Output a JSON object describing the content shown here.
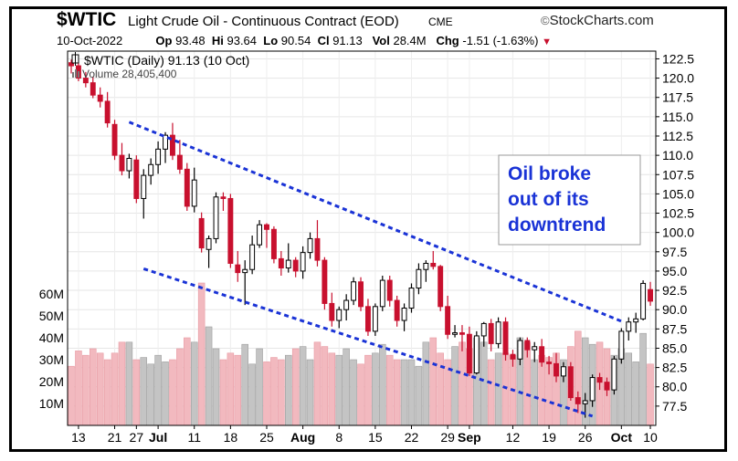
{
  "header": {
    "symbol": "$WTIC",
    "description": "Light Crude Oil - Continuous Contract (EOD)",
    "exchange": "CME",
    "brand": "StockCharts.com",
    "date": "10-Oct-2022",
    "open_label": "Op",
    "open": "93.48",
    "high_label": "Hi",
    "high": "93.64",
    "low_label": "Lo",
    "low": "90.54",
    "close_label": "Cl",
    "close": "91.13",
    "vol_label": "Vol",
    "vol": "28.4M",
    "chg_label": "Chg",
    "chg": "-1.51 (-1.63%)",
    "down_color": "#c8102e"
  },
  "legend": {
    "price_label": "$WTIC (Daily) 91.13 (10 Oct)",
    "volume_label": "Volume 28,405,400"
  },
  "annotation": {
    "lines": [
      "Oil broke",
      "out of its",
      "downtrend"
    ],
    "text_color": "#1a33d6",
    "channel_color": "#1a33d6"
  },
  "chart_data": {
    "type": "candlestick",
    "y_ticks": [
      "122.5",
      "120.0",
      "117.5",
      "115.0",
      "112.5",
      "110.0",
      "107.5",
      "105.0",
      "102.5",
      "100.0",
      "97.5",
      "95.0",
      "92.5",
      "90.0",
      "87.5",
      "85.0",
      "82.5",
      "80.0",
      "77.5"
    ],
    "volume_ticks": [
      "60M",
      "50M",
      "40M",
      "30M",
      "20M",
      "10M"
    ],
    "x_ticks": [
      {
        "label": "13",
        "i": 1
      },
      {
        "label": "21",
        "i": 6
      },
      {
        "label": "27",
        "i": 9
      },
      {
        "label": "Jul",
        "i": 12,
        "bold": true
      },
      {
        "label": "11",
        "i": 17
      },
      {
        "label": "18",
        "i": 22
      },
      {
        "label": "25",
        "i": 27
      },
      {
        "label": "Aug",
        "i": 32,
        "bold": true
      },
      {
        "label": "8",
        "i": 37
      },
      {
        "label": "15",
        "i": 42
      },
      {
        "label": "22",
        "i": 47
      },
      {
        "label": "29",
        "i": 52
      },
      {
        "label": "Sep",
        "i": 55,
        "bold": true
      },
      {
        "label": "12",
        "i": 61
      },
      {
        "label": "19",
        "i": 66
      },
      {
        "label": "26",
        "i": 71
      },
      {
        "label": "Oct",
        "i": 76,
        "bold": true
      },
      {
        "label": "10",
        "i": 80
      }
    ],
    "ylim": [
      75,
      123.5
    ],
    "volume_max": 65,
    "candles": [
      [
        122,
        122.4,
        120.6,
        121.6,
        27
      ],
      [
        121.6,
        122,
        119.6,
        120,
        34
      ],
      [
        120,
        120.8,
        118.8,
        119.4,
        32
      ],
      [
        119.4,
        120.2,
        117.4,
        117.8,
        35
      ],
      [
        117.8,
        118.8,
        116.2,
        117,
        33
      ],
      [
        117,
        118.2,
        113.6,
        114.2,
        30
      ],
      [
        114,
        114.6,
        109.4,
        110,
        33
      ],
      [
        110,
        111.6,
        107.4,
        108,
        38
      ],
      [
        108,
        110.2,
        107,
        109.6,
        38
      ],
      [
        109.4,
        110,
        103.8,
        104.4,
        30
      ],
      [
        104.4,
        108.2,
        101.8,
        107.4,
        31
      ],
      [
        107.4,
        109.6,
        106.2,
        108.8,
        28
      ],
      [
        108.8,
        111.8,
        107.6,
        110.8,
        32
      ],
      [
        110.8,
        113,
        109,
        112.6,
        29
      ],
      [
        112.6,
        114.2,
        109.4,
        110,
        30
      ],
      [
        110,
        112,
        107.6,
        108.2,
        35
      ],
      [
        108.2,
        109,
        102.8,
        103.4,
        40
      ],
      [
        103.4,
        108.4,
        102.6,
        106.8,
        38
      ],
      [
        101.8,
        102.6,
        97.4,
        98,
        65
      ],
      [
        97.8,
        99.6,
        95.4,
        99.2,
        45
      ],
      [
        99.2,
        105.2,
        98.6,
        104.6,
        35
      ],
      [
        104.6,
        105.2,
        102.8,
        104.4,
        30
      ],
      [
        104.4,
        105,
        95.4,
        96,
        33
      ],
      [
        95.8,
        97.6,
        93.6,
        94.8,
        32
      ],
      [
        94.8,
        96.4,
        90.6,
        95.2,
        37
      ],
      [
        95.2,
        99.6,
        94.6,
        98.4,
        28
      ],
      [
        98.4,
        101.6,
        98,
        101,
        35
      ],
      [
        101,
        101.2,
        98,
        100.4,
        29
      ],
      [
        100.4,
        100.8,
        96,
        96.6,
        31
      ],
      [
        96.6,
        97.6,
        94.4,
        95.4,
        30
      ],
      [
        95.4,
        98.6,
        94.8,
        96.4,
        32
      ],
      [
        96.4,
        96.8,
        94.2,
        95,
        35
      ],
      [
        95,
        98.2,
        94,
        97.4,
        36
      ],
      [
        97.4,
        100,
        96.6,
        99.2,
        30
      ],
      [
        99.2,
        101.6,
        95.6,
        96.4,
        38
      ],
      [
        96.4,
        96.8,
        90,
        90.8,
        36
      ],
      [
        90.8,
        92.2,
        87.8,
        88.6,
        33
      ],
      [
        88.6,
        90.4,
        87.6,
        90,
        32
      ],
      [
        90,
        92,
        88.6,
        91.2,
        35
      ],
      [
        91.2,
        94.2,
        90.6,
        93.6,
        30
      ],
      [
        93.6,
        94.2,
        89.8,
        90.4,
        28
      ],
      [
        90.4,
        91.4,
        86.6,
        87.2,
        32
      ],
      [
        87.2,
        90.8,
        86.6,
        90.4,
        33
      ],
      [
        90.4,
        94.4,
        89.8,
        93.8,
        37
      ],
      [
        93.8,
        94.4,
        90.4,
        91.2,
        32
      ],
      [
        91.2,
        91.8,
        87.8,
        88.6,
        30
      ],
      [
        88.6,
        90.8,
        87.2,
        90.2,
        30
      ],
      [
        90.2,
        93.4,
        89.6,
        92.8,
        30
      ],
      [
        92.8,
        96,
        92,
        95.2,
        27
      ],
      [
        95.2,
        96.4,
        93.6,
        96,
        38
      ],
      [
        96,
        97.6,
        95.2,
        95.6,
        40
      ],
      [
        95.6,
        95.8,
        89.8,
        90.4,
        33
      ],
      [
        90.4,
        91.8,
        86.2,
        86.8,
        30
      ],
      [
        86.8,
        88,
        86.4,
        87,
        36
      ],
      [
        87,
        88,
        84.6,
        86.8,
        38
      ],
      [
        86.8,
        87.8,
        81.4,
        81.8,
        35
      ],
      [
        81.8,
        87.2,
        81.6,
        86.6,
        40
      ],
      [
        86.6,
        88.4,
        85.2,
        88.2,
        38
      ],
      [
        88.2,
        88.8,
        84.6,
        85.6,
        30
      ],
      [
        85.6,
        89,
        85,
        88.4,
        33
      ],
      [
        88.4,
        89,
        83.4,
        84.2,
        33
      ],
      [
        84.2,
        84.8,
        82.6,
        83.6,
        32
      ],
      [
        83.6,
        86.4,
        82.8,
        86,
        40
      ],
      [
        86,
        86.4,
        83.8,
        84.8,
        38
      ],
      [
        84.8,
        85.8,
        83.2,
        85.2,
        30
      ],
      [
        85.2,
        86.2,
        82.6,
        83.2,
        32
      ],
      [
        83.2,
        84,
        81.6,
        83,
        31
      ],
      [
        83,
        84.4,
        80.6,
        81.4,
        33
      ],
      [
        81.4,
        83.2,
        80.6,
        82.6,
        30
      ],
      [
        82.6,
        83.2,
        78.2,
        78.6,
        36
      ],
      [
        78.6,
        79.4,
        76.6,
        77.8,
        43
      ],
      [
        77.8,
        79.2,
        76,
        78.2,
        40
      ],
      [
        78.2,
        81.6,
        77.4,
        81.2,
        37
      ],
      [
        81.2,
        81.8,
        79.6,
        80.6,
        38
      ],
      [
        80.6,
        81.2,
        78.8,
        79.6,
        35
      ],
      [
        79.6,
        84,
        79,
        83.6,
        32
      ],
      [
        83.6,
        87.6,
        83,
        87.2,
        35
      ],
      [
        87.2,
        89,
        86,
        88.4,
        33
      ],
      [
        88.4,
        89.6,
        87,
        88.8,
        29
      ],
      [
        88.8,
        93.8,
        88.6,
        93.4,
        42
      ],
      [
        92.6,
        93.6,
        90.5,
        91.1,
        28
      ]
    ],
    "channel_upper": [
      [
        8,
        114.3
      ],
      [
        76,
        88.5
      ]
    ],
    "channel_lower": [
      [
        10,
        95.3
      ],
      [
        72,
        76.2
      ]
    ]
  }
}
